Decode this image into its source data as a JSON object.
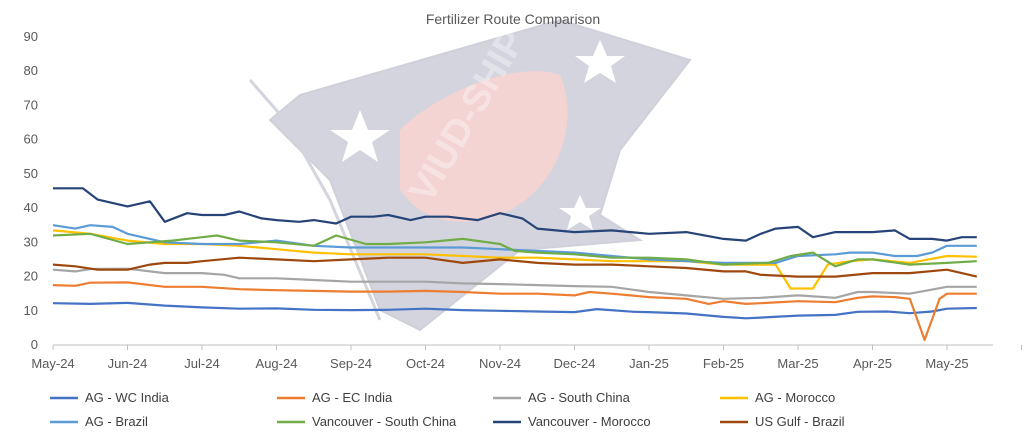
{
  "chart_data": {
    "type": "line",
    "title": "Fertilizer Route Comparison",
    "xlabel": "",
    "ylabel": "",
    "ylim": [
      0,
      90
    ],
    "yticks": [
      0,
      10,
      20,
      30,
      40,
      50,
      60,
      70,
      80,
      90
    ],
    "xlim": [
      0,
      13
    ],
    "x_ticks": [
      {
        "label": "May-24",
        "x": 0
      },
      {
        "label": "Jun-24",
        "x": 1
      },
      {
        "label": "Jul-24",
        "x": 2
      },
      {
        "label": "Aug-24",
        "x": 3
      },
      {
        "label": "Sep-24",
        "x": 4
      },
      {
        "label": "Oct-24",
        "x": 5
      },
      {
        "label": "Nov-24",
        "x": 6
      },
      {
        "label": "Dec-24",
        "x": 7
      },
      {
        "label": "Jan-25",
        "x": 8
      },
      {
        "label": "Feb-25",
        "x": 9
      },
      {
        "label": "Mar-25",
        "x": 10
      },
      {
        "label": "Apr-25",
        "x": 11
      },
      {
        "label": "May-25",
        "x": 12
      }
    ],
    "grid": false,
    "legend_position": "bottom",
    "watermark": "VIUD-SHIP",
    "series": [
      {
        "name": "AG - WC India",
        "color": "#4472C4",
        "points": [
          [
            0,
            12.2
          ],
          [
            0.5,
            12.0
          ],
          [
            1,
            12.3
          ],
          [
            1.5,
            11.5
          ],
          [
            2,
            11.0
          ],
          [
            2.5,
            10.6
          ],
          [
            3,
            10.7
          ],
          [
            3.5,
            10.3
          ],
          [
            4,
            10.2
          ],
          [
            4.5,
            10.3
          ],
          [
            5,
            10.6
          ],
          [
            5.5,
            10.2
          ],
          [
            6,
            10.0
          ],
          [
            6.5,
            9.8
          ],
          [
            7,
            9.6
          ],
          [
            7.3,
            10.5
          ],
          [
            7.8,
            9.7
          ],
          [
            8,
            9.6
          ],
          [
            8.5,
            9.2
          ],
          [
            9,
            8.2
          ],
          [
            9.3,
            7.8
          ],
          [
            9.5,
            8.0
          ],
          [
            10,
            8.6
          ],
          [
            10.5,
            8.8
          ],
          [
            10.8,
            9.7
          ],
          [
            11.2,
            9.8
          ],
          [
            11.5,
            9.3
          ],
          [
            11.8,
            9.8
          ],
          [
            12,
            10.6
          ],
          [
            12.4,
            10.8
          ]
        ]
      },
      {
        "name": "AG - EC India",
        "color": "#ED7D31",
        "points": [
          [
            0,
            17.5
          ],
          [
            0.3,
            17.3
          ],
          [
            0.5,
            18.2
          ],
          [
            1,
            18.3
          ],
          [
            1.5,
            17.0
          ],
          [
            2,
            17.0
          ],
          [
            2.5,
            16.3
          ],
          [
            3,
            16.0
          ],
          [
            3.5,
            15.8
          ],
          [
            4,
            15.6
          ],
          [
            4.5,
            15.6
          ],
          [
            5,
            15.8
          ],
          [
            5.5,
            15.5
          ],
          [
            6,
            15.0
          ],
          [
            6.5,
            15.0
          ],
          [
            7,
            14.5
          ],
          [
            7.2,
            15.5
          ],
          [
            7.5,
            15.0
          ],
          [
            8,
            14.0
          ],
          [
            8.5,
            13.5
          ],
          [
            8.8,
            12.0
          ],
          [
            9,
            12.8
          ],
          [
            9.3,
            12.0
          ],
          [
            9.5,
            12.2
          ],
          [
            10,
            12.8
          ],
          [
            10.5,
            12.5
          ],
          [
            10.8,
            13.8
          ],
          [
            11,
            14.2
          ],
          [
            11.3,
            14.0
          ],
          [
            11.5,
            13.5
          ],
          [
            11.7,
            1.5
          ],
          [
            11.9,
            13.5
          ],
          [
            12,
            15.0
          ],
          [
            12.4,
            15.0
          ]
        ]
      },
      {
        "name": "AG - South China",
        "color": "#A5A5A5",
        "points": [
          [
            0,
            22.0
          ],
          [
            0.3,
            21.5
          ],
          [
            0.5,
            22.2
          ],
          [
            1,
            22.3
          ],
          [
            1.5,
            21.0
          ],
          [
            2,
            21.0
          ],
          [
            2.3,
            20.5
          ],
          [
            2.5,
            19.5
          ],
          [
            3,
            19.5
          ],
          [
            3.5,
            19.0
          ],
          [
            4,
            18.5
          ],
          [
            4.5,
            18.5
          ],
          [
            5,
            18.5
          ],
          [
            5.5,
            18.0
          ],
          [
            6,
            17.8
          ],
          [
            6.5,
            17.5
          ],
          [
            7,
            17.2
          ],
          [
            7.5,
            17.0
          ],
          [
            8,
            15.5
          ],
          [
            8.5,
            14.5
          ],
          [
            9,
            13.5
          ],
          [
            9.5,
            13.8
          ],
          [
            10,
            14.5
          ],
          [
            10.5,
            13.8
          ],
          [
            10.8,
            15.5
          ],
          [
            11,
            15.5
          ],
          [
            11.5,
            15.0
          ],
          [
            12,
            17.0
          ],
          [
            12.4,
            17.0
          ]
        ]
      },
      {
        "name": "AG - Morocco",
        "color": "#FFC000",
        "points": [
          [
            0,
            33.5
          ],
          [
            0.5,
            32.5
          ],
          [
            1,
            30.5
          ],
          [
            1.5,
            29.5
          ],
          [
            2,
            29.5
          ],
          [
            2.5,
            29.0
          ],
          [
            3,
            28.0
          ],
          [
            3.5,
            27.0
          ],
          [
            4,
            26.5
          ],
          [
            4.5,
            26.5
          ],
          [
            5,
            26.5
          ],
          [
            5.5,
            26.0
          ],
          [
            6,
            25.5
          ],
          [
            6.5,
            25.5
          ],
          [
            7,
            25.0
          ],
          [
            7.5,
            24.5
          ],
          [
            8,
            24.5
          ],
          [
            8.5,
            24.5
          ],
          [
            9,
            23.5
          ],
          [
            9.5,
            23.5
          ],
          [
            9.7,
            23.5
          ],
          [
            9.9,
            16.5
          ],
          [
            10.2,
            16.5
          ],
          [
            10.4,
            23.5
          ],
          [
            10.7,
            24.5
          ],
          [
            11,
            25.0
          ],
          [
            11.5,
            24.0
          ],
          [
            12,
            26.0
          ],
          [
            12.4,
            25.8
          ]
        ]
      },
      {
        "name": "AG - Brazil",
        "color": "#5B9BD5",
        "points": [
          [
            0,
            35.0
          ],
          [
            0.3,
            34.0
          ],
          [
            0.5,
            35.0
          ],
          [
            0.8,
            34.5
          ],
          [
            1,
            32.5
          ],
          [
            1.3,
            31.0
          ],
          [
            1.5,
            30.0
          ],
          [
            2,
            29.5
          ],
          [
            2.5,
            29.5
          ],
          [
            3,
            30.5
          ],
          [
            3.5,
            29.0
          ],
          [
            4,
            28.5
          ],
          [
            4.5,
            28.5
          ],
          [
            5,
            28.5
          ],
          [
            5.5,
            28.5
          ],
          [
            6,
            28.0
          ],
          [
            6.5,
            27.5
          ],
          [
            7,
            27.0
          ],
          [
            7.5,
            26.0
          ],
          [
            8,
            25.0
          ],
          [
            8.5,
            24.5
          ],
          [
            9,
            24.0
          ],
          [
            9.5,
            24.0
          ],
          [
            9.7,
            24.0
          ],
          [
            10,
            26.0
          ],
          [
            10.5,
            26.5
          ],
          [
            10.7,
            27.0
          ],
          [
            11,
            27.0
          ],
          [
            11.3,
            26.0
          ],
          [
            11.6,
            26.0
          ],
          [
            11.8,
            27.0
          ],
          [
            12,
            29.0
          ],
          [
            12.4,
            29.0
          ]
        ]
      },
      {
        "name": "Vancouver - South China",
        "color": "#70AD47",
        "points": [
          [
            0,
            32.0
          ],
          [
            0.5,
            32.5
          ],
          [
            1,
            29.5
          ],
          [
            1.3,
            30.0
          ],
          [
            1.6,
            30.5
          ],
          [
            2,
            31.5
          ],
          [
            2.2,
            32.0
          ],
          [
            2.5,
            30.5
          ],
          [
            3,
            30.0
          ],
          [
            3.5,
            29.0
          ],
          [
            3.8,
            32.0
          ],
          [
            4.2,
            29.5
          ],
          [
            4.5,
            29.5
          ],
          [
            5,
            30.0
          ],
          [
            5.5,
            31.0
          ],
          [
            6,
            29.5
          ],
          [
            6.2,
            27.5
          ],
          [
            6.5,
            27.0
          ],
          [
            7,
            26.5
          ],
          [
            7.5,
            25.5
          ],
          [
            8,
            25.5
          ],
          [
            8.5,
            25.0
          ],
          [
            9,
            23.5
          ],
          [
            9.3,
            23.8
          ],
          [
            9.6,
            24.0
          ],
          [
            9.9,
            26.0
          ],
          [
            10.2,
            27.0
          ],
          [
            10.5,
            23.0
          ],
          [
            10.8,
            25.0
          ],
          [
            11,
            25.0
          ],
          [
            11.5,
            23.5
          ],
          [
            12,
            24.0
          ],
          [
            12.4,
            24.5
          ]
        ]
      },
      {
        "name": "Vancouver - Morocco",
        "color": "#264478",
        "points": [
          [
            0,
            45.8
          ],
          [
            0.4,
            45.8
          ],
          [
            0.6,
            42.5
          ],
          [
            1,
            40.5
          ],
          [
            1.3,
            42.0
          ],
          [
            1.5,
            36.0
          ],
          [
            1.8,
            38.5
          ],
          [
            2,
            38.0
          ],
          [
            2.3,
            38.0
          ],
          [
            2.5,
            39.0
          ],
          [
            2.8,
            37.0
          ],
          [
            3,
            36.5
          ],
          [
            3.3,
            36.0
          ],
          [
            3.5,
            36.5
          ],
          [
            3.8,
            35.5
          ],
          [
            4,
            37.5
          ],
          [
            4.3,
            37.5
          ],
          [
            4.5,
            38.0
          ],
          [
            4.8,
            36.5
          ],
          [
            5,
            37.5
          ],
          [
            5.3,
            37.5
          ],
          [
            5.7,
            36.5
          ],
          [
            6,
            38.5
          ],
          [
            6.3,
            37.0
          ],
          [
            6.5,
            34.0
          ],
          [
            7,
            33.0
          ],
          [
            7.5,
            33.5
          ],
          [
            8,
            32.5
          ],
          [
            8.5,
            33.0
          ],
          [
            9,
            31.0
          ],
          [
            9.3,
            30.5
          ],
          [
            9.5,
            32.5
          ],
          [
            9.7,
            34.0
          ],
          [
            10,
            34.5
          ],
          [
            10.2,
            31.5
          ],
          [
            10.5,
            33.0
          ],
          [
            11,
            33.0
          ],
          [
            11.3,
            33.5
          ],
          [
            11.5,
            31.0
          ],
          [
            11.8,
            31.0
          ],
          [
            12,
            30.5
          ],
          [
            12.2,
            31.5
          ],
          [
            12.4,
            31.5
          ]
        ]
      },
      {
        "name": "US Gulf - Brazil",
        "color": "#9E480E",
        "points": [
          [
            0,
            23.5
          ],
          [
            0.3,
            23.0
          ],
          [
            0.6,
            22.0
          ],
          [
            1,
            22.0
          ],
          [
            1.3,
            23.5
          ],
          [
            1.5,
            24.0
          ],
          [
            1.8,
            24.0
          ],
          [
            2,
            24.5
          ],
          [
            2.5,
            25.5
          ],
          [
            3,
            25.0
          ],
          [
            3.5,
            24.5
          ],
          [
            4,
            25.0
          ],
          [
            4.5,
            25.5
          ],
          [
            5,
            25.5
          ],
          [
            5.5,
            24.0
          ],
          [
            6,
            25.0
          ],
          [
            6.5,
            24.0
          ],
          [
            7,
            23.5
          ],
          [
            7.5,
            23.5
          ],
          [
            8,
            23.0
          ],
          [
            8.5,
            22.5
          ],
          [
            9,
            21.5
          ],
          [
            9.3,
            21.5
          ],
          [
            9.5,
            20.5
          ],
          [
            10,
            20.0
          ],
          [
            10.5,
            20.0
          ],
          [
            11,
            21.0
          ],
          [
            11.5,
            21.0
          ],
          [
            12,
            22.0
          ],
          [
            12.4,
            20.0
          ]
        ]
      }
    ]
  }
}
